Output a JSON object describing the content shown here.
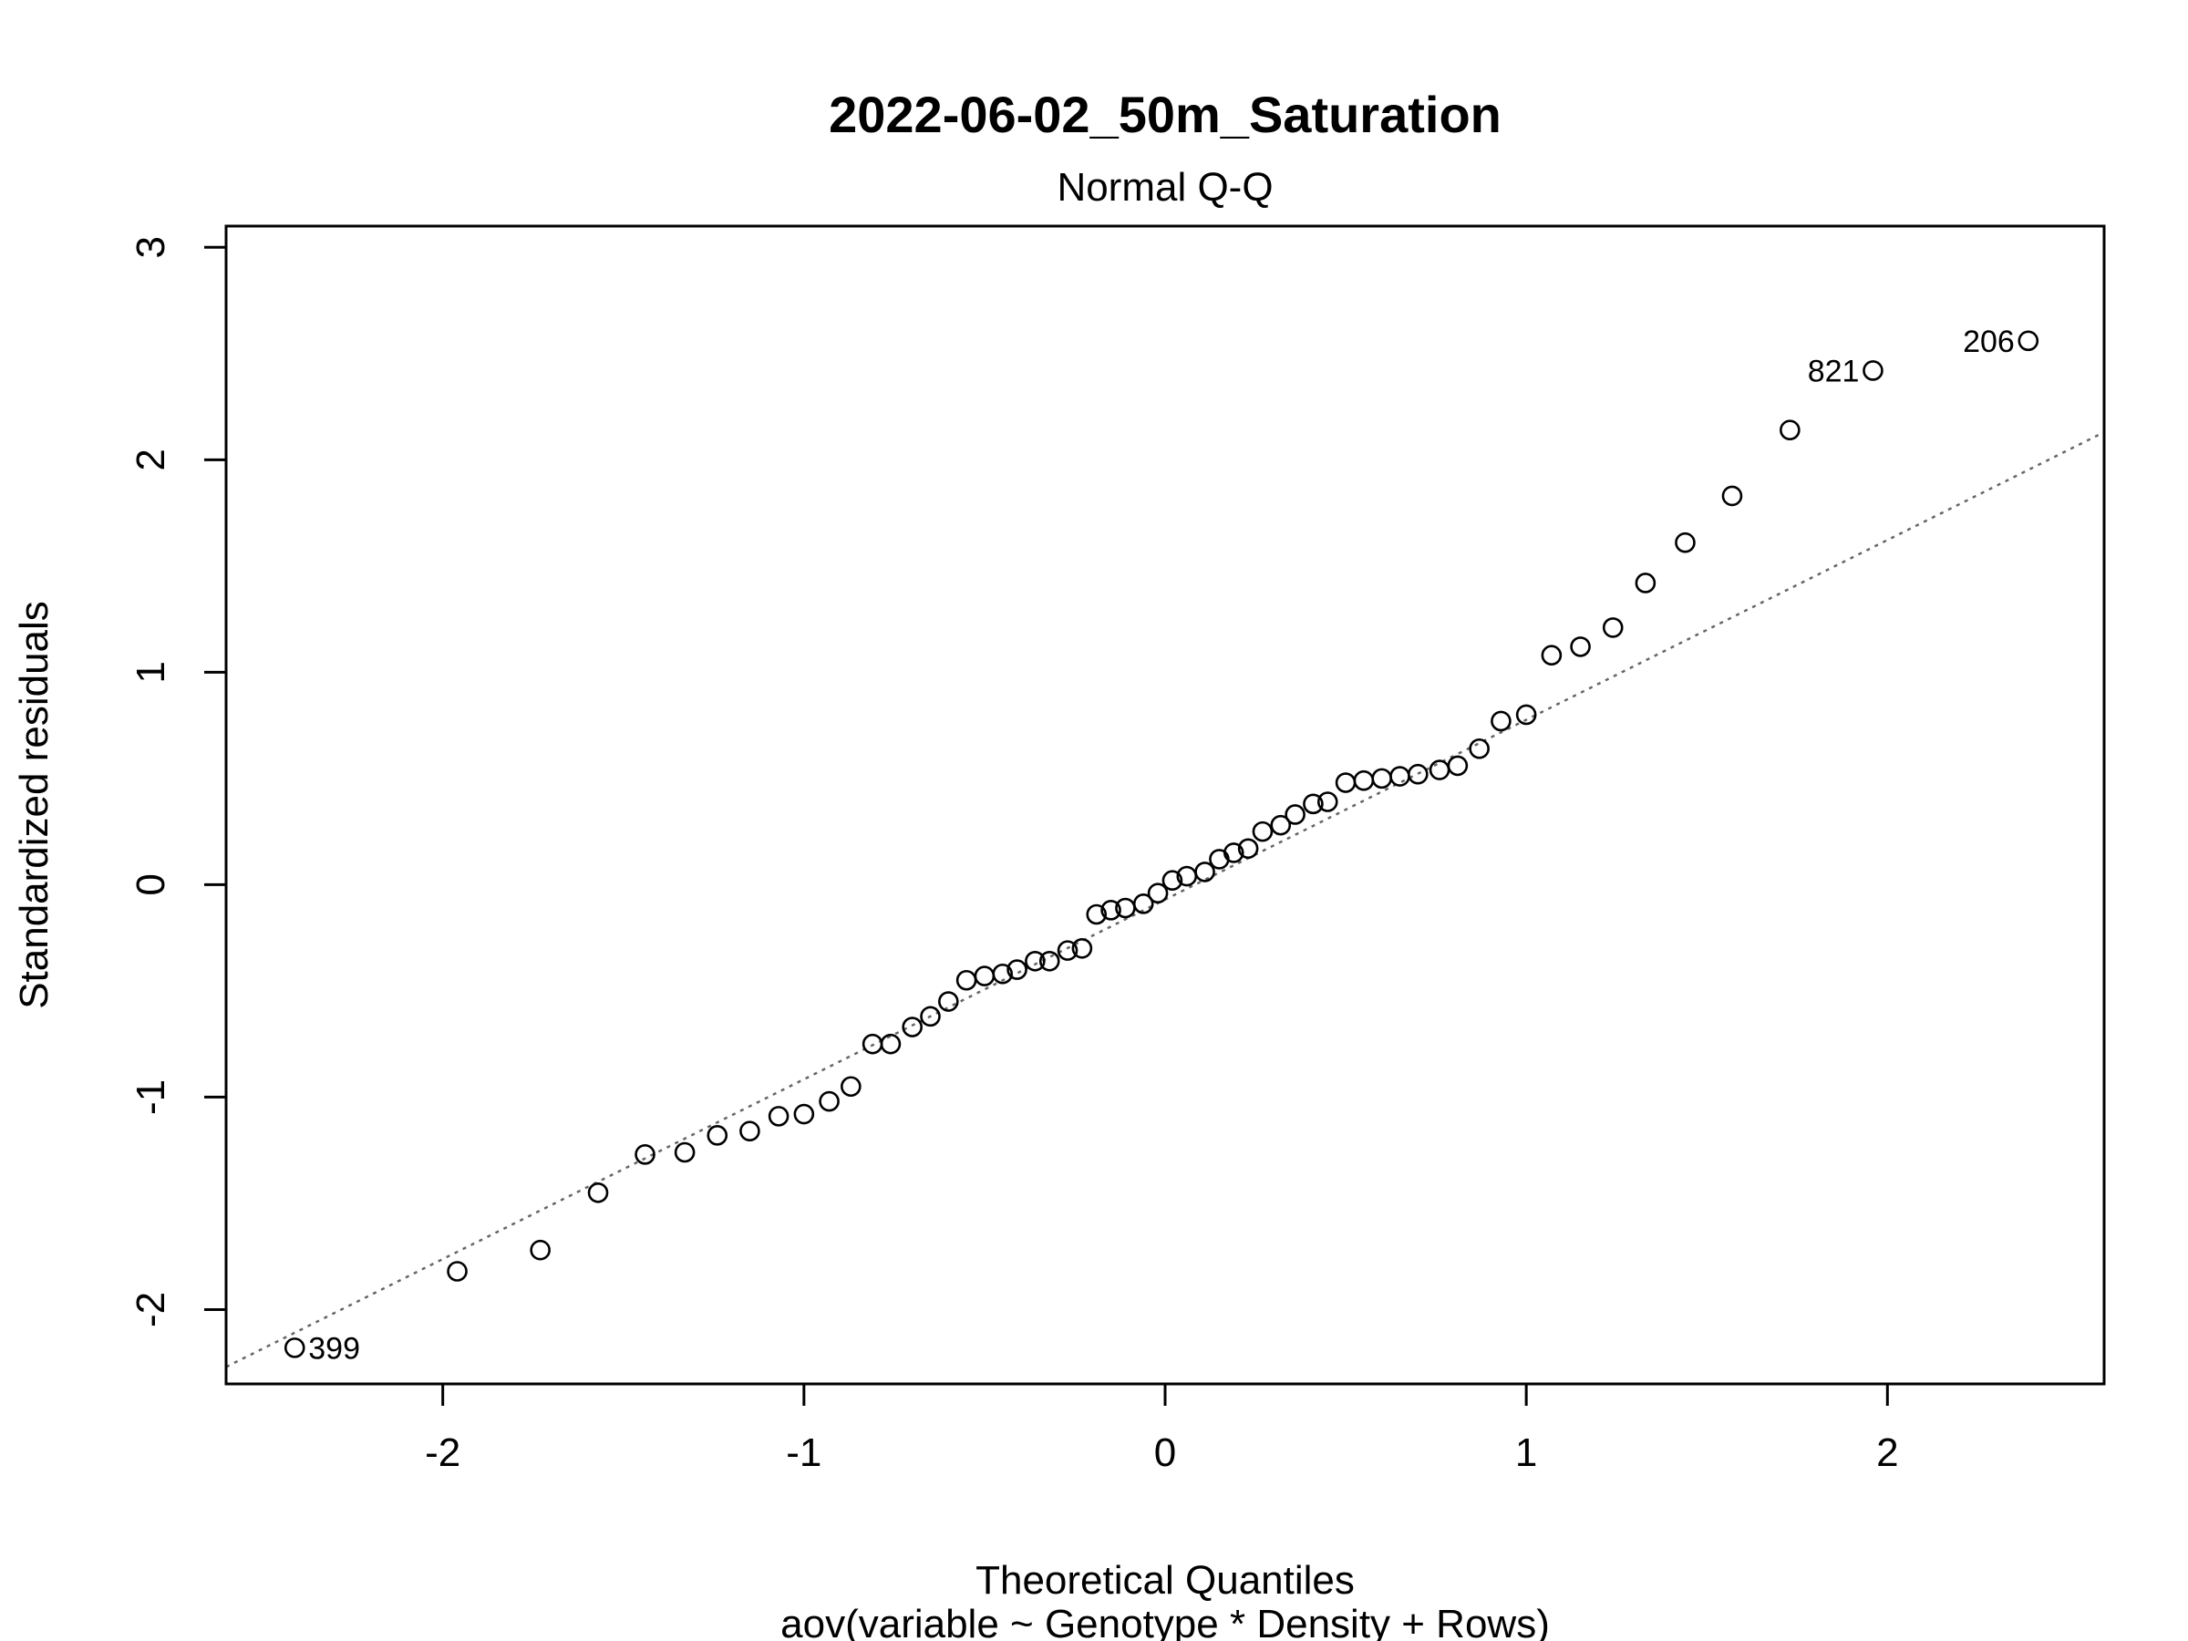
{
  "chart_data": {
    "type": "scatter",
    "title": "2022-06-02_50m_Saturation",
    "subtitle": "Normal Q-Q",
    "xlabel": "Theoretical Quantiles",
    "xlabel2": "aov(variable ~ Genotype * Density + Rows)",
    "ylabel": "Standardized residuals",
    "xlim": [
      -2.6,
      2.6
    ],
    "ylim": [
      -2.35,
      3.1
    ],
    "xticks": [
      -2,
      -1,
      0,
      1,
      2
    ],
    "xtick_labels": [
      "-2",
      "-1",
      "0",
      "1",
      "2"
    ],
    "yticks": [
      -2,
      -1,
      0,
      1,
      2,
      3
    ],
    "ytick_labels": [
      "-2",
      "-1",
      "0",
      "1",
      "2",
      "3"
    ],
    "grid": false,
    "reference_line": {
      "style": "dotted",
      "color": "#666666",
      "points": [
        [
          -2.6,
          -2.27
        ],
        [
          2.6,
          2.13
        ]
      ]
    },
    "points": [
      {
        "x": -2.41,
        "y": -2.18,
        "label": "399"
      },
      {
        "x": -1.96,
        "y": -1.82
      },
      {
        "x": -1.73,
        "y": -1.72
      },
      {
        "x": -1.57,
        "y": -1.45
      },
      {
        "x": -1.44,
        "y": -1.27
      },
      {
        "x": -1.33,
        "y": -1.26
      },
      {
        "x": -1.24,
        "y": -1.18
      },
      {
        "x": -1.15,
        "y": -1.16
      },
      {
        "x": -1.07,
        "y": -1.09
      },
      {
        "x": -1.0,
        "y": -1.08
      },
      {
        "x": -0.93,
        "y": -1.02
      },
      {
        "x": -0.87,
        "y": -0.95
      },
      {
        "x": -0.81,
        "y": -0.75
      },
      {
        "x": -0.76,
        "y": -0.75
      },
      {
        "x": -0.7,
        "y": -0.67
      },
      {
        "x": -0.65,
        "y": -0.62
      },
      {
        "x": -0.6,
        "y": -0.55
      },
      {
        "x": -0.55,
        "y": -0.45
      },
      {
        "x": -0.5,
        "y": -0.43
      },
      {
        "x": -0.45,
        "y": -0.42
      },
      {
        "x": -0.41,
        "y": -0.4
      },
      {
        "x": -0.36,
        "y": -0.36
      },
      {
        "x": -0.32,
        "y": -0.36
      },
      {
        "x": -0.27,
        "y": -0.31
      },
      {
        "x": -0.23,
        "y": -0.3
      },
      {
        "x": -0.19,
        "y": -0.14
      },
      {
        "x": -0.15,
        "y": -0.12
      },
      {
        "x": -0.11,
        "y": -0.11
      },
      {
        "x": -0.06,
        "y": -0.09
      },
      {
        "x": -0.02,
        "y": -0.04
      },
      {
        "x": 0.02,
        "y": 0.02
      },
      {
        "x": 0.06,
        "y": 0.04
      },
      {
        "x": 0.11,
        "y": 0.06
      },
      {
        "x": 0.15,
        "y": 0.12
      },
      {
        "x": 0.19,
        "y": 0.15
      },
      {
        "x": 0.23,
        "y": 0.17
      },
      {
        "x": 0.27,
        "y": 0.25
      },
      {
        "x": 0.32,
        "y": 0.28
      },
      {
        "x": 0.36,
        "y": 0.33
      },
      {
        "x": 0.41,
        "y": 0.38
      },
      {
        "x": 0.45,
        "y": 0.39
      },
      {
        "x": 0.5,
        "y": 0.48
      },
      {
        "x": 0.55,
        "y": 0.49
      },
      {
        "x": 0.6,
        "y": 0.5
      },
      {
        "x": 0.65,
        "y": 0.51
      },
      {
        "x": 0.7,
        "y": 0.52
      },
      {
        "x": 0.76,
        "y": 0.54
      },
      {
        "x": 0.81,
        "y": 0.56
      },
      {
        "x": 0.87,
        "y": 0.64
      },
      {
        "x": 0.93,
        "y": 0.77
      },
      {
        "x": 1.0,
        "y": 0.8
      },
      {
        "x": 1.07,
        "y": 1.08
      },
      {
        "x": 1.15,
        "y": 1.12
      },
      {
        "x": 1.24,
        "y": 1.21
      },
      {
        "x": 1.33,
        "y": 1.42
      },
      {
        "x": 1.44,
        "y": 1.61
      },
      {
        "x": 1.57,
        "y": 1.83
      },
      {
        "x": 1.73,
        "y": 2.14
      },
      {
        "x": 1.96,
        "y": 2.42,
        "label": "821"
      },
      {
        "x": 2.39,
        "y": 2.56,
        "label": "206"
      }
    ]
  }
}
